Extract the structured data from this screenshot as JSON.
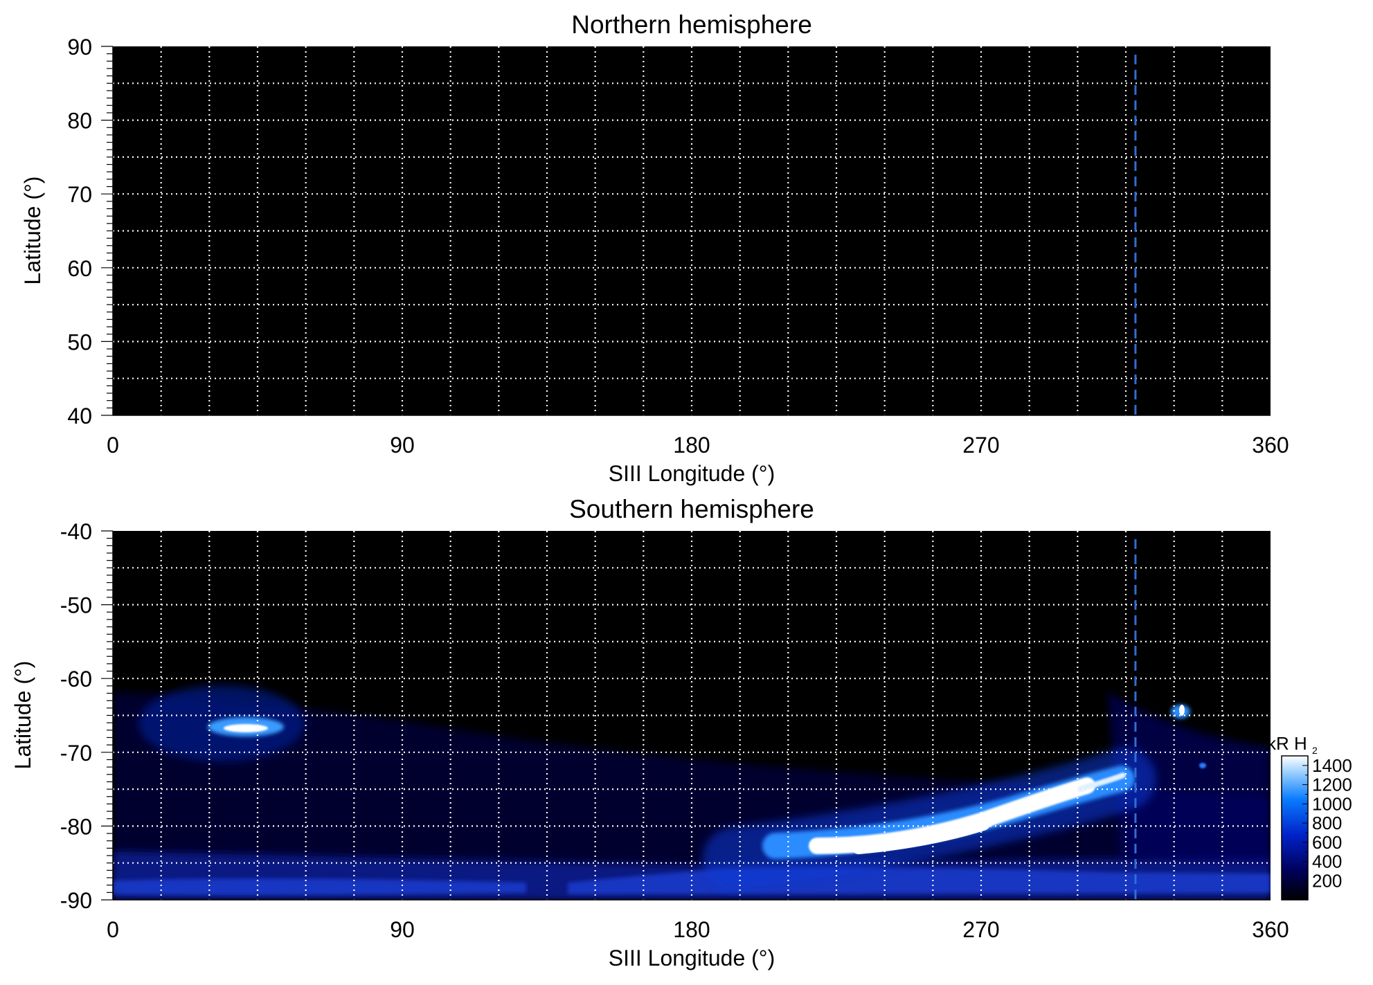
{
  "chart_data": [
    {
      "type": "heatmap",
      "title": "Northern hemisphere",
      "xlabel": "SIII Longitude (°)",
      "ylabel": "Latitude (°)",
      "xlim": [
        0,
        360
      ],
      "ylim": [
        40,
        90
      ],
      "xticks": [
        "0",
        "90",
        "180",
        "270",
        "360"
      ],
      "yticks": [
        "40",
        "50",
        "60",
        "70",
        "80",
        "90"
      ],
      "grid": true,
      "grid_color": "#ffffff",
      "background": "#000000",
      "marker_line": {
        "longitude": 318,
        "color": "#2f6fd6",
        "style": "dashed"
      },
      "emission": []
    },
    {
      "type": "heatmap",
      "title": "Southern hemisphere",
      "xlabel": "SIII Longitude (°)",
      "ylabel": "Latitude (°)",
      "xlim": [
        0,
        360
      ],
      "ylim": [
        -90,
        -40
      ],
      "xticks": [
        "0",
        "90",
        "180",
        "270",
        "360"
      ],
      "yticks": [
        "-90",
        "-80",
        "-70",
        "-60",
        "-50",
        "-40"
      ],
      "grid": true,
      "grid_color": "#ffffff",
      "background": "#000000",
      "marker_line": {
        "longitude": 318,
        "color": "#2f6fd6",
        "style": "dashed"
      },
      "emission": [
        {
          "lon": 40,
          "lat": -67,
          "value": 1300
        },
        {
          "lon": 45,
          "lat": -66.5,
          "value": 900
        },
        {
          "lon": 35,
          "lat": -66,
          "value": 600
        },
        {
          "lon": 30,
          "lat": -63,
          "value": 200
        },
        {
          "lon": 25,
          "lat": -74,
          "value": 250
        },
        {
          "lon": 210,
          "lat": -84,
          "value": 700
        },
        {
          "lon": 225,
          "lat": -84.5,
          "value": 1100
        },
        {
          "lon": 240,
          "lat": -84,
          "value": 1400
        },
        {
          "lon": 255,
          "lat": -83,
          "value": 1400
        },
        {
          "lon": 268,
          "lat": -81.5,
          "value": 1350
        },
        {
          "lon": 280,
          "lat": -80,
          "value": 1200
        },
        {
          "lon": 292,
          "lat": -78,
          "value": 1000
        },
        {
          "lon": 302,
          "lat": -76,
          "value": 800
        },
        {
          "lon": 312,
          "lat": -75,
          "value": 600
        },
        {
          "lon": 332,
          "lat": -64,
          "value": 1400
        },
        {
          "lon": 338,
          "lat": -72,
          "value": 500
        },
        {
          "lon": 60,
          "lat": -88,
          "value": 300
        },
        {
          "lon": 160,
          "lat": -88,
          "value": 300
        },
        {
          "lon": 300,
          "lat": -88,
          "value": 350
        }
      ],
      "colorbar": {
        "label_prefix": "kR H",
        "label_subscript": "2",
        "range": [
          0,
          1500
        ],
        "ticks": [
          "200",
          "400",
          "600",
          "800",
          "1000",
          "1200",
          "1400"
        ],
        "colors": [
          "#000000",
          "#00005a",
          "#0022c8",
          "#0a7cff",
          "#8ec9ff",
          "#ffffff"
        ]
      }
    }
  ]
}
